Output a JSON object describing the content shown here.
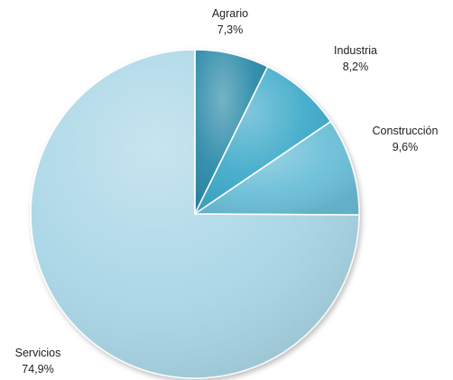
{
  "chart_data": {
    "type": "pie",
    "slices": [
      {
        "name": "Agrario",
        "value": 7.3,
        "label": "7,3%",
        "color": "#2b8aa8"
      },
      {
        "name": "Industria",
        "value": 8.2,
        "label": "8,2%",
        "color": "#3eaac9"
      },
      {
        "name": "Construcción",
        "value": 9.6,
        "label": "9,6%",
        "color": "#6bbfd8"
      },
      {
        "name": "Servicios",
        "value": 74.9,
        "label": "74,9%",
        "color": "#a9d6e6"
      }
    ],
    "start": "12 o'clock",
    "direction": "clockwise",
    "legend": "none"
  }
}
